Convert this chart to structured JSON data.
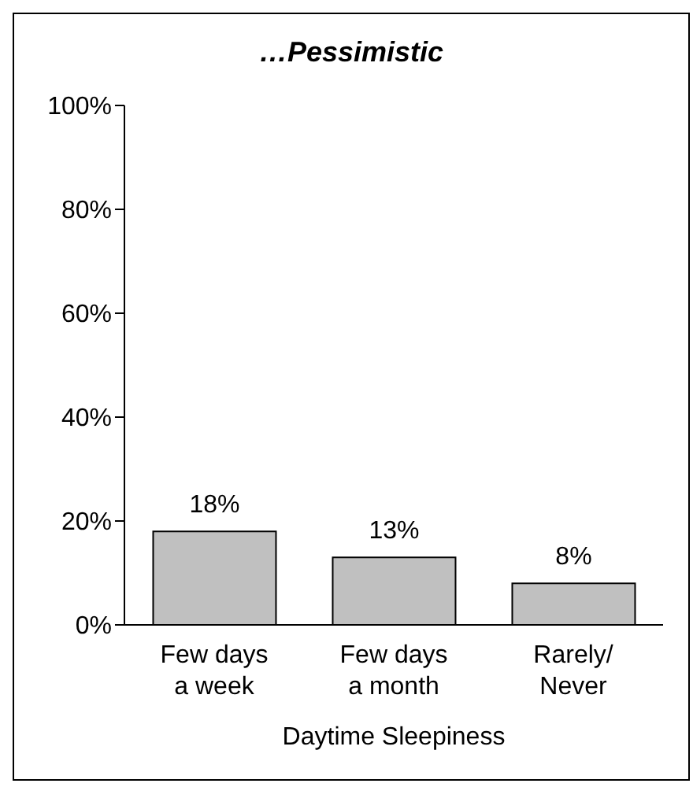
{
  "chart_data": {
    "type": "bar",
    "title": "…Pessimistic",
    "xlabel": "Daytime Sleepiness",
    "categories": [
      "Few days a week",
      "Few days a month",
      "Rarely/ Never"
    ],
    "values": [
      18,
      13,
      8
    ],
    "value_labels": [
      "18%",
      "13%",
      "8%"
    ],
    "color": "#c0c0c0",
    "ylim": [
      0,
      100
    ],
    "yticks": [
      {
        "value": 0,
        "label": "0%"
      },
      {
        "value": 20,
        "label": "20%"
      },
      {
        "value": 40,
        "label": "40%"
      },
      {
        "value": 60,
        "label": "60%"
      },
      {
        "value": 80,
        "label": "80%"
      },
      {
        "value": 100,
        "label": "100%"
      }
    ],
    "grid": false,
    "legend": false
  }
}
